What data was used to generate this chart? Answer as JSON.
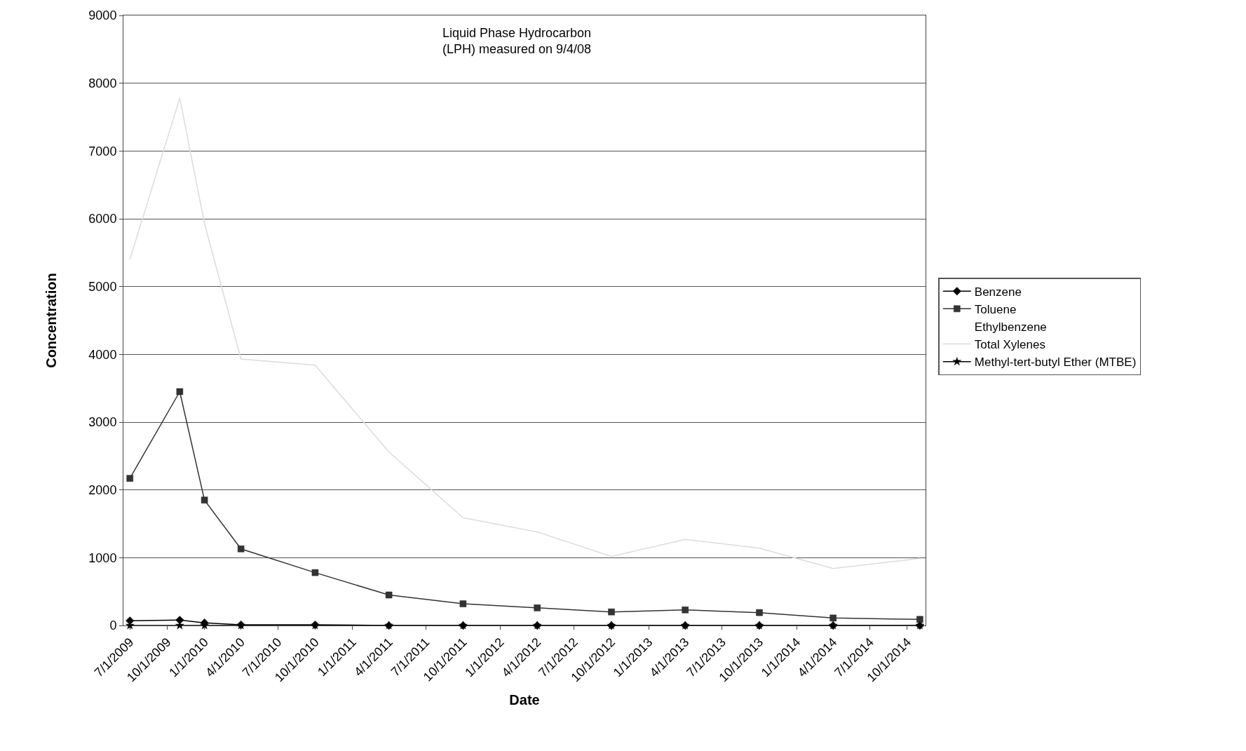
{
  "chart_data": {
    "type": "line",
    "annotations": [
      "Liquid Phase Hydrocarbon\n(LPH) measured on 9/4/08"
    ],
    "xlabel": "Date",
    "ylabel": "Concentration",
    "x": [
      "2009-07-01",
      "2009-11-01",
      "2010-01-01",
      "2010-04-01",
      "2010-10-01",
      "2011-04-01",
      "2011-10-01",
      "2012-04-01",
      "2012-10-01",
      "2013-04-01",
      "2013-10-01",
      "2014-04-01",
      "2014-11-01"
    ],
    "series": [
      {
        "name": "Benzene",
        "color": "#000000",
        "marker": "diamond",
        "values": [
          70,
          80,
          40,
          10,
          10,
          0,
          0,
          0,
          0,
          0,
          0,
          0,
          0
        ]
      },
      {
        "name": "Toluene",
        "color": "#333333",
        "marker": "square",
        "values": [
          2170,
          3450,
          1850,
          1130,
          780,
          450,
          320,
          260,
          200,
          230,
          190,
          110,
          90
        ]
      },
      {
        "name": "Ethylbenzene",
        "marker": "none",
        "values": [
          null,
          null,
          null,
          null,
          null,
          null,
          null,
          null,
          null,
          null,
          null,
          null,
          null
        ]
      },
      {
        "name": "Total Xylenes",
        "color": "#dcdcdc",
        "marker": "none",
        "values": [
          5400,
          7780,
          5930,
          3930,
          3840,
          2560,
          1590,
          1380,
          1020,
          1270,
          1140,
          840,
          990
        ]
      },
      {
        "name": "Methyl-tert-butyl Ether (MTBE)",
        "color": "#000000",
        "marker": "star",
        "values": [
          0,
          0,
          0,
          0,
          0,
          0,
          0,
          0,
          0,
          0,
          0,
          0,
          0
        ]
      }
    ],
    "xlim": [
      "2009-06-15",
      "2014-11-15"
    ],
    "xticks": [
      {
        "value": "2009-07-01",
        "label": "7/1/2009"
      },
      {
        "value": "2009-10-01",
        "label": "10/1/2009"
      },
      {
        "value": "2010-01-01",
        "label": "1/1/2010"
      },
      {
        "value": "2010-04-01",
        "label": "4/1/2010"
      },
      {
        "value": "2010-07-01",
        "label": "7/1/2010"
      },
      {
        "value": "2010-10-01",
        "label": "10/1/2010"
      },
      {
        "value": "2011-01-01",
        "label": "1/1/2011"
      },
      {
        "value": "2011-04-01",
        "label": "4/1/2011"
      },
      {
        "value": "2011-07-01",
        "label": "7/1/2011"
      },
      {
        "value": "2011-10-01",
        "label": "10/1/2011"
      },
      {
        "value": "2012-01-01",
        "label": "1/1/2012"
      },
      {
        "value": "2012-04-01",
        "label": "4/1/2012"
      },
      {
        "value": "2012-07-01",
        "label": "7/1/2012"
      },
      {
        "value": "2012-10-01",
        "label": "10/1/2012"
      },
      {
        "value": "2013-01-01",
        "label": "1/1/2013"
      },
      {
        "value": "2013-04-01",
        "label": "4/1/2013"
      },
      {
        "value": "2013-07-01",
        "label": "7/1/2013"
      },
      {
        "value": "2013-10-01",
        "label": "10/1/2013"
      },
      {
        "value": "2014-01-01",
        "label": "1/1/2014"
      },
      {
        "value": "2014-04-01",
        "label": "4/1/2014"
      },
      {
        "value": "2014-07-01",
        "label": "7/1/2014"
      },
      {
        "value": "2014-10-01",
        "label": "10/1/2014"
      }
    ],
    "ylim": [
      0,
      9000
    ],
    "yticks": [
      0,
      1000,
      2000,
      3000,
      4000,
      5000,
      6000,
      7000,
      8000,
      9000
    ],
    "grid": "y",
    "legend": "right",
    "line_style": "solid"
  }
}
